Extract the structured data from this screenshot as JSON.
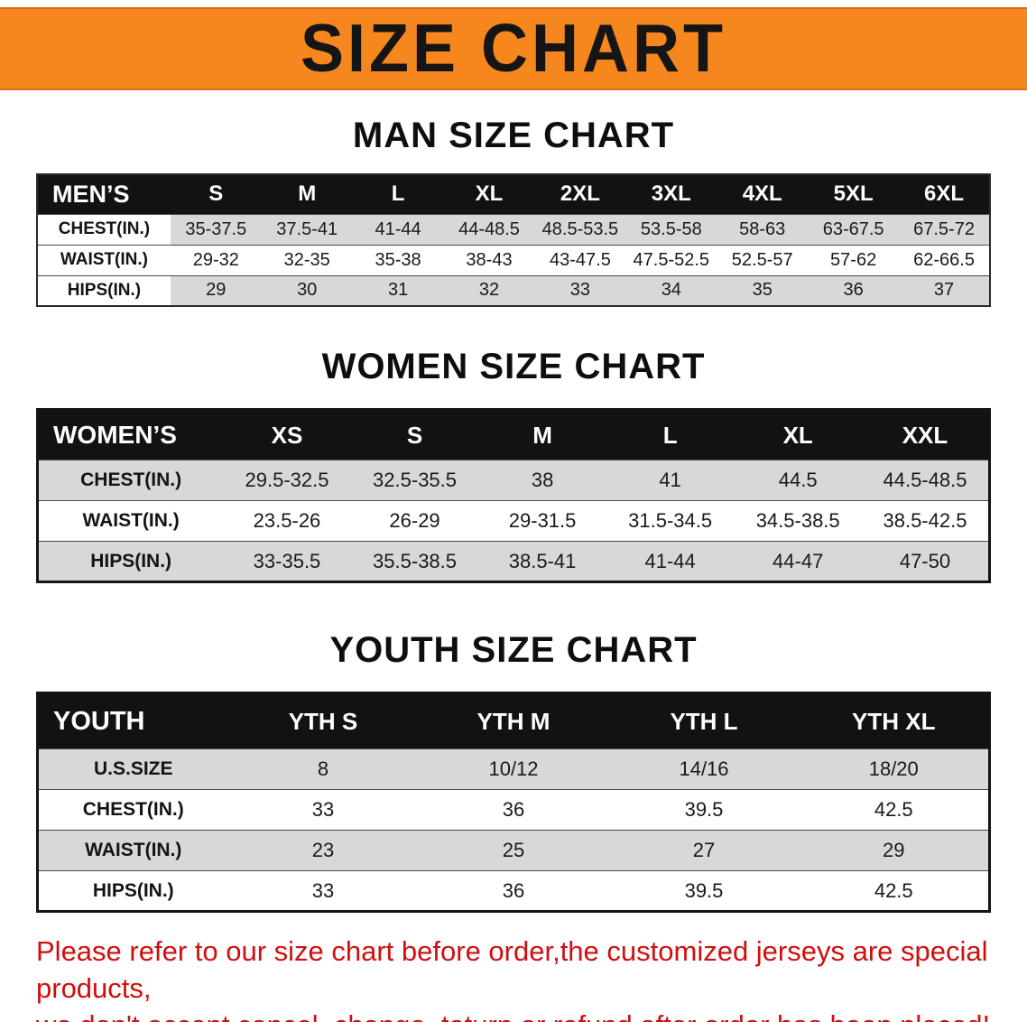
{
  "banner": {
    "title": "SIZE CHART"
  },
  "colors": {
    "banner_bg": "#f6871f",
    "table_header_bg": "#121212",
    "row_stripe": "#d8d8d8",
    "disclaimer_text": "#cf0f0f"
  },
  "sections": [
    {
      "heading": "MAN SIZE CHART",
      "table": {
        "header": [
          "MEN’S",
          "S",
          "M",
          "L",
          "XL",
          "2XL",
          "3XL",
          "4XL",
          "5XL",
          "6XL"
        ],
        "rows": [
          [
            "CHEST(IN.)",
            "35-37.5",
            "37.5-41",
            "41-44",
            "44-48.5",
            "48.5-53.5",
            "53.5-58",
            "58-63",
            "63-67.5",
            "67.5-72"
          ],
          [
            "WAIST(IN.)",
            "29-32",
            "32-35",
            "35-38",
            "38-43",
            "43-47.5",
            "47.5-52.5",
            "52.5-57",
            "57-62",
            "62-66.5"
          ],
          [
            "HIPS(IN.)",
            "29",
            "30",
            "31",
            "32",
            "33",
            "34",
            "35",
            "36",
            "37"
          ]
        ],
        "stripe_rows": [
          0,
          2
        ]
      }
    },
    {
      "heading": "WOMEN SIZE CHART",
      "table": {
        "header": [
          "WOMEN’S",
          "XS",
          "S",
          "M",
          "L",
          "XL",
          "XXL"
        ],
        "rows": [
          [
            "CHEST(IN.)",
            "29.5-32.5",
            "32.5-35.5",
            "38",
            "41",
            "44.5",
            "44.5-48.5"
          ],
          [
            "WAIST(IN.)",
            "23.5-26",
            "26-29",
            "29-31.5",
            "31.5-34.5",
            "34.5-38.5",
            "38.5-42.5"
          ],
          [
            "HIPS(IN.)",
            "33-35.5",
            "35.5-38.5",
            "38.5-41",
            "41-44",
            "44-47",
            "47-50"
          ]
        ],
        "stripe_rows": [
          0,
          2
        ]
      }
    },
    {
      "heading": "YOUTH SIZE CHART",
      "table": {
        "header": [
          "YOUTH",
          "YTH S",
          "YTH M",
          "YTH L",
          "YTH XL"
        ],
        "rows": [
          [
            "U.S.SIZE",
            "8",
            "10/12",
            "14/16",
            "18/20"
          ],
          [
            "CHEST(IN.)",
            "33",
            "36",
            "39.5",
            "42.5"
          ],
          [
            "WAIST(IN.)",
            "23",
            "25",
            "27",
            "29"
          ],
          [
            "HIPS(IN.)",
            "33",
            "36",
            "39.5",
            "42.5"
          ]
        ],
        "stripe_rows": [
          0,
          2
        ]
      }
    }
  ],
  "disclaimer": {
    "line1": "Please refer to our size chart before order,the customized jerseys are special products,",
    "line2": "we don't accept cancel, change, teturn or refund after order has been placed!"
  }
}
